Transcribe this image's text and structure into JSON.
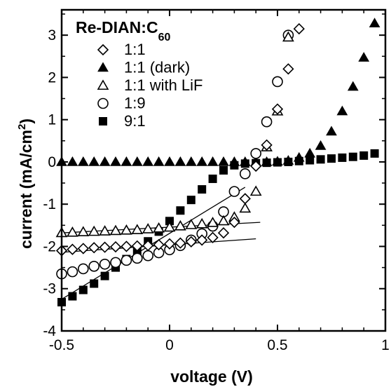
{
  "chart_data": {
    "type": "scatter",
    "title": "",
    "xlabel": "voltage (V)",
    "ylabel_main": "current (mA/cm",
    "ylabel_sup": "2",
    "ylabel_end": ")",
    "xlim": [
      -0.5,
      1.0
    ],
    "ylim": [
      -4,
      3.6
    ],
    "x_ticks": [
      -0.5,
      0,
      0.5,
      1
    ],
    "x_tick_labels": [
      "-0.5",
      "0",
      "0.5",
      "1"
    ],
    "y_ticks": [
      -4,
      -3,
      -2,
      -1,
      0,
      1,
      2,
      3
    ],
    "y_tick_labels": [
      "-4",
      "-3",
      "-2",
      "-1",
      "0",
      "1",
      "2",
      "3"
    ],
    "grid": false,
    "legend": {
      "title_main": "Re-DIAN:C",
      "title_sub": "60",
      "placement": "top-left"
    },
    "series": [
      {
        "name": "1:1",
        "marker": "diamond-open",
        "x": [
          -0.5,
          -0.45,
          -0.4,
          -0.35,
          -0.3,
          -0.25,
          -0.2,
          -0.15,
          -0.1,
          -0.05,
          0.0,
          0.05,
          0.1,
          0.15,
          0.2,
          0.25,
          0.3,
          0.35,
          0.4,
          0.45,
          0.5,
          0.55,
          0.6
        ],
        "y": [
          -2.1,
          -2.07,
          -2.05,
          -2.03,
          -2.02,
          -2.01,
          -2.0,
          -1.99,
          -1.98,
          -1.96,
          -1.94,
          -1.92,
          -1.89,
          -1.85,
          -1.79,
          -1.68,
          -1.43,
          -0.87,
          -0.1,
          0.4,
          1.25,
          2.2,
          3.15
        ]
      },
      {
        "name": "1:1 (dark)",
        "marker": "triangle-filled",
        "x": [
          -0.5,
          -0.45,
          -0.4,
          -0.35,
          -0.3,
          -0.25,
          -0.2,
          -0.15,
          -0.1,
          -0.05,
          0.0,
          0.05,
          0.1,
          0.15,
          0.2,
          0.25,
          0.3,
          0.35,
          0.4,
          0.45,
          0.5,
          0.55,
          0.6,
          0.65,
          0.7,
          0.75,
          0.8,
          0.85,
          0.9,
          0.95
        ],
        "y": [
          0,
          0,
          0,
          0,
          0,
          0,
          0,
          0,
          0,
          0,
          0,
          0,
          0,
          0,
          0,
          0,
          0,
          0,
          0,
          0,
          0.01,
          0.03,
          0.1,
          0.2,
          0.38,
          0.72,
          1.2,
          1.78,
          2.47,
          3.28
        ]
      },
      {
        "name": "1:1 with LiF",
        "marker": "triangle-open",
        "x": [
          -0.5,
          -0.45,
          -0.4,
          -0.35,
          -0.3,
          -0.25,
          -0.2,
          -0.15,
          -0.1,
          -0.05,
          0.0,
          0.05,
          0.1,
          0.15,
          0.2,
          0.25,
          0.3,
          0.35,
          0.4,
          0.45,
          0.5,
          0.55
        ],
        "y": [
          -1.68,
          -1.67,
          -1.66,
          -1.65,
          -1.64,
          -1.63,
          -1.62,
          -1.61,
          -1.59,
          -1.57,
          -1.55,
          -1.52,
          -1.49,
          -1.47,
          -1.44,
          -1.4,
          -1.31,
          -1.1,
          -0.7,
          0.35,
          1.2,
          2.95
        ]
      },
      {
        "name": "1:9",
        "marker": "circle-open",
        "x": [
          -0.5,
          -0.45,
          -0.4,
          -0.35,
          -0.3,
          -0.25,
          -0.2,
          -0.15,
          -0.1,
          -0.05,
          0.0,
          0.05,
          0.1,
          0.15,
          0.2,
          0.25,
          0.3,
          0.35,
          0.4,
          0.45,
          0.5,
          0.55
        ],
        "y": [
          -2.65,
          -2.6,
          -2.53,
          -2.47,
          -2.42,
          -2.38,
          -2.33,
          -2.28,
          -2.22,
          -2.15,
          -2.08,
          -1.98,
          -1.85,
          -1.7,
          -1.52,
          -1.18,
          -0.7,
          -0.28,
          0.2,
          0.95,
          1.9,
          3.0
        ]
      },
      {
        "name": "9:1",
        "marker": "square-filled",
        "x": [
          -0.5,
          -0.45,
          -0.4,
          -0.35,
          -0.3,
          -0.25,
          -0.2,
          -0.15,
          -0.1,
          -0.05,
          0.0,
          0.05,
          0.1,
          0.15,
          0.2,
          0.25,
          0.3,
          0.35,
          0.4,
          0.45,
          0.5,
          0.55,
          0.6,
          0.65,
          0.7,
          0.75,
          0.8,
          0.85,
          0.9,
          0.95
        ],
        "y": [
          -3.32,
          -3.18,
          -3.03,
          -2.88,
          -2.7,
          -2.5,
          -2.3,
          -2.1,
          -1.88,
          -1.65,
          -1.4,
          -1.15,
          -0.9,
          -0.65,
          -0.4,
          -0.2,
          -0.08,
          -0.04,
          -0.03,
          -0.02,
          -0.01,
          0.0,
          0.02,
          0.04,
          0.06,
          0.08,
          0.1,
          0.12,
          0.15,
          0.2
        ]
      }
    ],
    "fit_lines": [
      {
        "x": [
          -0.5,
          0.42
        ],
        "y": [
          -1.68,
          -1.43
        ]
      },
      {
        "x": [
          -0.5,
          0.4
        ],
        "y": [
          -2.14,
          -1.82
        ]
      },
      {
        "x": [
          -0.5,
          0.35
        ],
        "y": [
          -3.25,
          -0.6
        ]
      }
    ]
  }
}
